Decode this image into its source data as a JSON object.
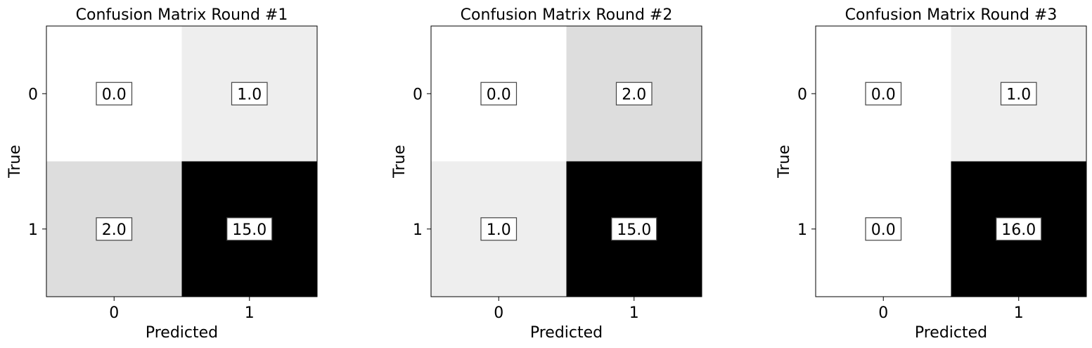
{
  "chart_data": [
    {
      "type": "heatmap",
      "title": "Confusion Matrix Round #1",
      "xlabel": "Predicted",
      "ylabel": "True",
      "x_ticks": [
        "0",
        "1"
      ],
      "y_ticks": [
        "0",
        "1"
      ],
      "values": [
        [
          0.0,
          1.0
        ],
        [
          2.0,
          15.0
        ]
      ],
      "cell_labels": [
        [
          "0.0",
          "1.0"
        ],
        [
          "2.0",
          "15.0"
        ]
      ],
      "colormap": "grayscale (white = low, black = high)"
    },
    {
      "type": "heatmap",
      "title": "Confusion Matrix Round #2",
      "xlabel": "Predicted",
      "ylabel": "True",
      "x_ticks": [
        "0",
        "1"
      ],
      "y_ticks": [
        "0",
        "1"
      ],
      "values": [
        [
          0.0,
          2.0
        ],
        [
          1.0,
          15.0
        ]
      ],
      "cell_labels": [
        [
          "0.0",
          "2.0"
        ],
        [
          "1.0",
          "15.0"
        ]
      ],
      "colormap": "grayscale (white = low, black = high)"
    },
    {
      "type": "heatmap",
      "title": "Confusion Matrix Round #3",
      "xlabel": "Predicted",
      "ylabel": "True",
      "x_ticks": [
        "0",
        "1"
      ],
      "y_ticks": [
        "0",
        "1"
      ],
      "values": [
        [
          0.0,
          1.0
        ],
        [
          0.0,
          16.0
        ]
      ],
      "cell_labels": [
        [
          "0.0",
          "1.0"
        ],
        [
          "0.0",
          "16.0"
        ]
      ],
      "colormap": "grayscale (white = low, black = high)"
    }
  ]
}
